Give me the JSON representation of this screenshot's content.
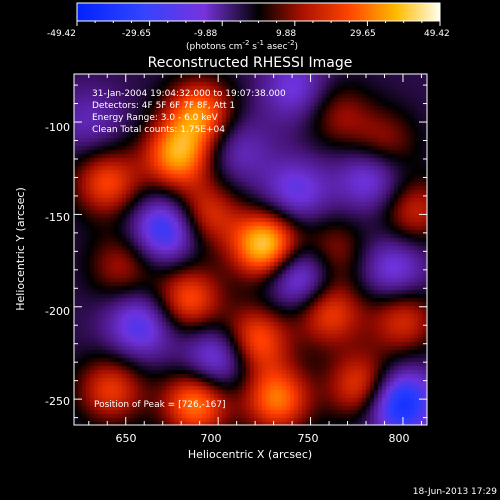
{
  "colorbar": {
    "ticks": [
      "-49.42",
      "-29.65",
      "-9.88",
      "9.88",
      "29.65",
      "49.42"
    ],
    "range": [
      -49.42,
      49.42
    ],
    "units_main": "(photons cm",
    "units_sup1": "-2",
    "units_mid": " s",
    "units_sup2": "-1",
    "units_mid2": " asec",
    "units_sup3": "-2",
    "units_end": ")"
  },
  "chart": {
    "title": "Reconstructed RHESSI Image",
    "xlabel": "Heliocentric X (arcsec)",
    "ylabel": "Heliocentric Y (arcsec)",
    "xticks": [
      "650",
      "700",
      "750",
      "800"
    ],
    "yticks": [
      "-100",
      "-150",
      "-200",
      "-250"
    ],
    "annotations": [
      "31-Jan-2004 19:04:32.000 to 19:07:38.000",
      "Detectors: 4F 5F 6F 7F 8F, Att 1",
      "Energy Range: 3.0 - 6.0 keV",
      "Clean    Total counts: 1.75E+04"
    ],
    "peak_label": "Position of Peak = [726,-167]"
  },
  "footer": {
    "timestamp": "18-Jun-2013 17:29"
  },
  "chart_data": {
    "type": "heatmap",
    "title": "Reconstructed RHESSI Image",
    "xlabel": "Heliocentric X (arcsec)",
    "ylabel": "Heliocentric Y (arcsec)",
    "xlim": [
      622,
      813
    ],
    "ylim": [
      -264,
      -74
    ],
    "color_range": [
      -49.42,
      49.42
    ],
    "peak": {
      "x": 726,
      "y": -167
    },
    "sources": [
      {
        "x": 726,
        "y": -167,
        "value": 49
      },
      {
        "x": 678,
        "y": -118,
        "value": 38
      },
      {
        "x": 640,
        "y": -133,
        "value": 28
      },
      {
        "x": 690,
        "y": -95,
        "value": 34
      },
      {
        "x": 693,
        "y": -150,
        "value": 26
      },
      {
        "x": 684,
        "y": -196,
        "value": 30
      },
      {
        "x": 720,
        "y": -218,
        "value": 32
      },
      {
        "x": 732,
        "y": -250,
        "value": 34
      },
      {
        "x": 688,
        "y": -252,
        "value": 36
      },
      {
        "x": 642,
        "y": -245,
        "value": 26
      },
      {
        "x": 760,
        "y": -203,
        "value": 28
      },
      {
        "x": 778,
        "y": -243,
        "value": 30
      },
      {
        "x": 800,
        "y": -207,
        "value": 24
      },
      {
        "x": 806,
        "y": -148,
        "value": 22
      },
      {
        "x": 762,
        "y": -170,
        "value": 18
      },
      {
        "x": 648,
        "y": -178,
        "value": 18
      },
      {
        "x": 765,
        "y": -96,
        "value": 16
      },
      {
        "x": 790,
        "y": -112,
        "value": 18
      },
      {
        "x": 798,
        "y": -252,
        "value": -40
      },
      {
        "x": 672,
        "y": -158,
        "value": -32
      },
      {
        "x": 744,
        "y": -183,
        "value": -30
      },
      {
        "x": 700,
        "y": -228,
        "value": -26
      },
      {
        "x": 783,
        "y": -130,
        "value": -22
      },
      {
        "x": 742,
        "y": -138,
        "value": -20
      },
      {
        "x": 658,
        "y": -210,
        "value": -24
      },
      {
        "x": 742,
        "y": -82,
        "value": -18
      },
      {
        "x": 630,
        "y": -100,
        "value": -12
      },
      {
        "x": 710,
        "y": -115,
        "value": -14
      },
      {
        "x": 795,
        "y": -180,
        "value": -20
      }
    ]
  }
}
